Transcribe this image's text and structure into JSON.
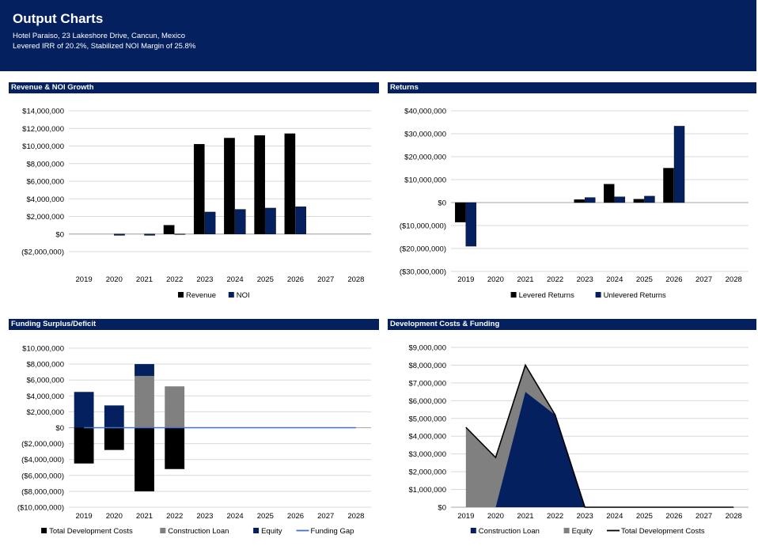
{
  "header": {
    "title": "Output Charts",
    "subtitle_1": "Hotel Paraiso, 23 Lakeshore Drive, Cancun, Mexico",
    "subtitle_2": "Levered IRR of 20.2%, Stabilized NOI Margin of 25.8%"
  },
  "colors": {
    "navy": "#05205f",
    "black": "#000000",
    "gray": "#808080",
    "funding_gap": "#4472c4"
  },
  "chart_data": [
    {
      "id": "revenue",
      "type": "bar",
      "title": "Revenue & NOI Growth",
      "categories": [
        "2019",
        "2020",
        "2021",
        "2022",
        "2023",
        "2024",
        "2025",
        "2026",
        "2027",
        "2028"
      ],
      "ylim": [
        -2000000,
        14000000
      ],
      "yticks": [
        -2000000,
        0,
        2000000,
        4000000,
        6000000,
        8000000,
        10000000,
        12000000,
        14000000
      ],
      "ytick_labels": [
        "($2,000,000)",
        "$0",
        "$2,000,000",
        "$4,000,000",
        "$6,000,000",
        "$8,000,000",
        "$10,000,000",
        "$12,000,000",
        "$14,000,000"
      ],
      "series": [
        {
          "name": "Revenue",
          "color": "#000000",
          "values": [
            0,
            0,
            0,
            1000000,
            10200000,
            10900000,
            11200000,
            11400000,
            0,
            0
          ]
        },
        {
          "name": "NOI",
          "color": "#05205f",
          "values": [
            0,
            -150000,
            -150000,
            -60000,
            2500000,
            2800000,
            2950000,
            3100000,
            0,
            0
          ]
        }
      ],
      "legend_position": "bottom",
      "grid": true
    },
    {
      "id": "returns",
      "type": "bar",
      "title": "Returns",
      "categories": [
        "2019",
        "2020",
        "2021",
        "2022",
        "2023",
        "2024",
        "2025",
        "2026",
        "2027",
        "2028"
      ],
      "ylim": [
        -30000000,
        40000000
      ],
      "yticks": [
        -30000000,
        -20000000,
        -10000000,
        0,
        10000000,
        20000000,
        30000000,
        40000000
      ],
      "ytick_labels": [
        "($30,000,000)",
        "($20,000,000)",
        "($10,000,000)",
        "$0",
        "$10,000,000",
        "$20,000,000",
        "$30,000,000",
        "$40,000,000"
      ],
      "series": [
        {
          "name": "Levered Returns",
          "color": "#000000",
          "values": [
            -8500000,
            0,
            0,
            0,
            1300000,
            8000000,
            1500000,
            15000000,
            0,
            0
          ]
        },
        {
          "name": "Unlevered Returns",
          "color": "#05205f",
          "values": [
            -19000000,
            0,
            0,
            0,
            2200000,
            2500000,
            2800000,
            33300000,
            0,
            0
          ]
        }
      ],
      "legend_position": "bottom",
      "grid": true
    },
    {
      "id": "funding",
      "type": "bar",
      "title": "Funding Surplus/Deficit",
      "categories": [
        "2019",
        "2020",
        "2021",
        "2022",
        "2023",
        "2024",
        "2025",
        "2026",
        "2027",
        "2028"
      ],
      "ylim": [
        -10000000,
        10000000
      ],
      "yticks": [
        -10000000,
        -8000000,
        -6000000,
        -4000000,
        -2000000,
        0,
        2000000,
        4000000,
        6000000,
        8000000,
        10000000
      ],
      "ytick_labels": [
        "($10,000,000)",
        "($8,000,000)",
        "($6,000,000)",
        "($4,000,000)",
        "($2,000,000)",
        "$0",
        "$2,000,000",
        "$4,000,000",
        "$6,000,000",
        "$8,000,000",
        "$10,000,000"
      ],
      "series": [
        {
          "name": "Total Development Costs",
          "color": "#000000",
          "kind": "stack",
          "values": [
            -4500000,
            -2800000,
            -8000000,
            -5200000,
            0,
            0,
            0,
            0,
            0,
            0
          ]
        },
        {
          "name": "Construction Loan",
          "color": "#808080",
          "kind": "stack",
          "values": [
            0,
            0,
            6500000,
            5200000,
            0,
            0,
            0,
            0,
            0,
            0
          ]
        },
        {
          "name": "Equity",
          "color": "#05205f",
          "kind": "stack",
          "values": [
            4500000,
            2800000,
            1500000,
            0,
            0,
            0,
            0,
            0,
            0,
            0
          ]
        },
        {
          "name": "Funding Gap",
          "color": "#4472c4",
          "kind": "line",
          "values": [
            0,
            0,
            0,
            0,
            0,
            0,
            0,
            0,
            0,
            0
          ]
        }
      ],
      "legend_position": "bottom",
      "grid": true
    },
    {
      "id": "devcosts",
      "type": "area",
      "title": "Development Costs & Funding",
      "categories": [
        "2019",
        "2020",
        "2021",
        "2022",
        "2023",
        "2024",
        "2025",
        "2026",
        "2027",
        "2028"
      ],
      "ylim": [
        0,
        9000000
      ],
      "yticks": [
        0,
        1000000,
        2000000,
        3000000,
        4000000,
        5000000,
        6000000,
        7000000,
        8000000,
        9000000
      ],
      "ytick_labels": [
        "$0",
        "$1,000,000",
        "$2,000,000",
        "$3,000,000",
        "$4,000,000",
        "$5,000,000",
        "$6,000,000",
        "$7,000,000",
        "$8,000,000",
        "$9,000,000"
      ],
      "series": [
        {
          "name": "Construction Loan",
          "color": "#05205f",
          "kind": "area",
          "values": [
            0,
            0,
            6500000,
            5200000,
            0,
            0,
            0,
            0,
            0,
            0
          ]
        },
        {
          "name": "Equity",
          "color": "#808080",
          "kind": "area",
          "values": [
            4500000,
            2800000,
            1500000,
            0,
            0,
            0,
            0,
            0,
            0,
            0
          ]
        },
        {
          "name": "Total Development Costs",
          "color": "#000000",
          "kind": "line",
          "values": [
            4500000,
            2800000,
            8000000,
            5200000,
            0,
            0,
            0,
            0,
            0,
            0
          ]
        }
      ],
      "legend_position": "bottom",
      "grid": true
    }
  ]
}
